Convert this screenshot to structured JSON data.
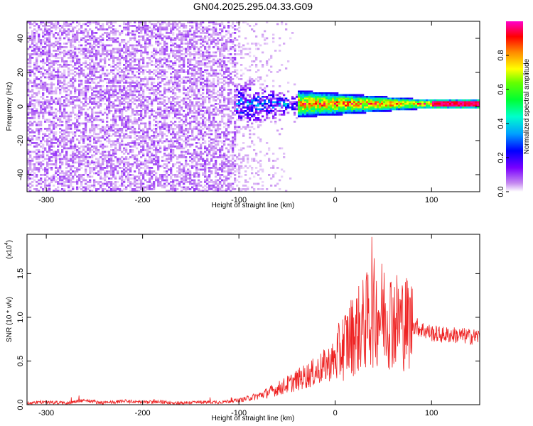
{
  "title": "GN04.2025.295.04.33.G09",
  "chart_data": [
    {
      "type": "heatmap",
      "title": "GN04.2025.295.04.33.G09",
      "xlabel": "Height of straight line (km)",
      "ylabel": "Frequency (Hz)",
      "xlim": [
        -320,
        150
      ],
      "ylim": [
        -50,
        50
      ],
      "xticks": [
        -300,
        -200,
        -100,
        0,
        100
      ],
      "yticks": [
        -40,
        -20,
        0,
        20,
        40
      ],
      "colorbar": {
        "label": "Normalized spectral amplitude",
        "range": [
          0.0,
          1.0
        ],
        "ticks": [
          "0.0",
          "0.2",
          "0.4",
          "0.6",
          "0.8"
        ],
        "colormap": [
          "#ffffff",
          "#c58af0",
          "#7a00ff",
          "#0000ff",
          "#00c8ff",
          "#00ff66",
          "#66ff00",
          "#ffff00",
          "#ff8800",
          "#ff0000",
          "#ff00cc"
        ]
      },
      "features": {
        "noise_region_km": [
          -320,
          -105
        ],
        "signal_onset_km": -105,
        "center_frequency_hz": 2
      }
    },
    {
      "type": "line",
      "xlabel": "Height of straight line (km)",
      "ylabel": "SNR (10 * v/v)",
      "y_scale_label": "(x10",
      "y_scale_exponent": "4",
      "xlim": [
        -320,
        150
      ],
      "ylim": [
        0,
        1.95
      ],
      "xticks": [
        -300,
        -200,
        -100,
        0,
        100
      ],
      "yticks": [
        0.0,
        0.5,
        1.0,
        1.5
      ],
      "ytick_labels": [
        "0.0",
        "0.5",
        "1.0",
        "1.5"
      ],
      "series": [
        {
          "name": "SNR",
          "color": "#ee2222",
          "x": [
            -320,
            -300,
            -280,
            -260,
            -240,
            -220,
            -200,
            -180,
            -160,
            -140,
            -120,
            -100,
            -80,
            -60,
            -40,
            -20,
            0,
            10,
            20,
            30,
            40,
            50,
            60,
            70,
            80,
            90,
            100,
            110,
            120,
            130,
            140,
            150
          ],
          "values": [
            0.02,
            0.03,
            0.02,
            0.05,
            0.02,
            0.04,
            0.03,
            0.03,
            0.02,
            0.03,
            0.03,
            0.05,
            0.1,
            0.18,
            0.28,
            0.38,
            0.52,
            0.7,
            0.82,
            0.92,
            1.05,
            1.05,
            0.98,
            0.95,
            0.92,
            0.86,
            0.82,
            0.8,
            0.8,
            0.79,
            0.78,
            0.78
          ],
          "peak": {
            "x": 38,
            "y": 1.92
          }
        }
      ]
    }
  ]
}
